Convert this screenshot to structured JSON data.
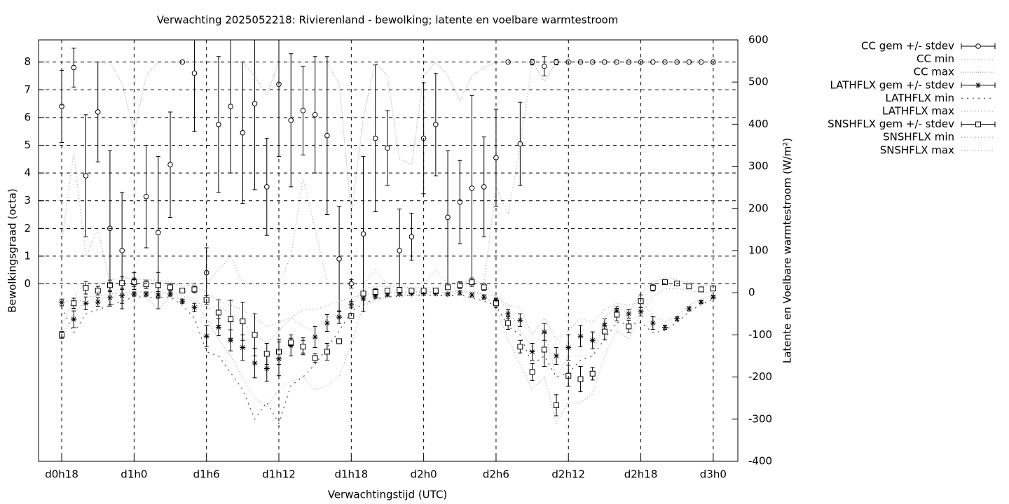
{
  "chart_data": {
    "type": "errorbar-line",
    "title": "Verwachting 2025052218: Rivierenland - bewolking; latente en voelbare warmtestroom",
    "x_label": "Verwachtingstijd (UTC)",
    "y_label": "Bewolkingsgraad (octa)",
    "y2_label": "Latente en Voelbare warmtestroom (W/m²)",
    "x": [
      18,
      19,
      20,
      21,
      22,
      23,
      24,
      25,
      26,
      27,
      28,
      29,
      30,
      31,
      32,
      33,
      34,
      35,
      36,
      37,
      38,
      39,
      40,
      41,
      42,
      43,
      44,
      45,
      46,
      47,
      48,
      49,
      50,
      51,
      52,
      53,
      54,
      55,
      56,
      57,
      58,
      59,
      60,
      61,
      62,
      63,
      64,
      65,
      66,
      67,
      68,
      69,
      70,
      71,
      72
    ],
    "xlim": [
      16.08,
      74.04
    ],
    "xticks": [
      {
        "value": 18,
        "label": "d0h18"
      },
      {
        "value": 24,
        "label": "d1h0"
      },
      {
        "value": 30,
        "label": "d1h6"
      },
      {
        "value": 36,
        "label": "d1h12"
      },
      {
        "value": 42,
        "label": "d1h18"
      },
      {
        "value": 48,
        "label": "d2h0"
      },
      {
        "value": 54,
        "label": "d2h6"
      },
      {
        "value": 60,
        "label": "d2h12"
      },
      {
        "value": 66,
        "label": "d2h18"
      },
      {
        "value": 72,
        "label": "d3h0"
      }
    ],
    "ylim": [
      -6.4,
      8.8
    ],
    "yticks": [
      0,
      1,
      2,
      3,
      4,
      5,
      6,
      7,
      8
    ],
    "y2lim": [
      -400,
      600
    ],
    "y2ticks": [
      -400,
      -300,
      -200,
      -100,
      0,
      100,
      200,
      300,
      400,
      500,
      600
    ],
    "grid": true,
    "series": [
      {
        "name": "CC gem +/- stdev",
        "color": "#000000",
        "marker": "circle",
        "axis": "y",
        "values": [
          6.4,
          7.8,
          3.9,
          6.2,
          2.0,
          1.2,
          0.1,
          3.15,
          1.85,
          4.3,
          8.0,
          7.6,
          0.4,
          5.75,
          6.4,
          5.45,
          6.5,
          3.5,
          7.2,
          5.9,
          6.25,
          6.1,
          5.35,
          0.9,
          0.0,
          1.8,
          5.25,
          4.9,
          1.2,
          1.7,
          5.25,
          5.75,
          2.4,
          2.95,
          3.45,
          3.5,
          4.55,
          8.0,
          5.05,
          8.0,
          7.85,
          8.0,
          8,
          8,
          8,
          8,
          8,
          8,
          8,
          8,
          8,
          8,
          8,
          8,
          8
        ],
        "errors": [
          1.3,
          0.7,
          2.2,
          1.8,
          2.8,
          2.1,
          0.3,
          1.85,
          2.75,
          1.9,
          0,
          2.1,
          0.9,
          2.45,
          2.4,
          2.55,
          3.1,
          1.75,
          2.6,
          2.4,
          1.6,
          2.1,
          2.85,
          1.9,
          0.15,
          2.8,
          2.65,
          1.35,
          1.5,
          0.85,
          2.0,
          1.85,
          2.4,
          1.5,
          3.35,
          1.8,
          1.75,
          0,
          1.5,
          0.1,
          0.35,
          0.1,
          0,
          0,
          0,
          0,
          0,
          0,
          0,
          0,
          0,
          0,
          0,
          0,
          0
        ]
      },
      {
        "name": "CC min",
        "color": "#aaaaaa",
        "dash": "1 3",
        "axis": "y",
        "values": [
          1.5,
          4.7,
          1,
          2,
          0,
          0,
          0,
          0,
          0,
          0,
          0,
          0,
          0,
          0.5,
          1,
          0,
          0,
          0,
          0,
          1,
          3.8,
          2,
          0,
          0,
          0,
          0,
          0.5,
          0,
          0,
          0,
          0,
          0.5,
          0,
          0,
          0,
          0,
          3.5,
          2.5,
          5,
          8,
          8,
          8,
          8,
          8,
          8,
          8,
          8,
          8,
          8,
          8,
          8,
          8,
          8,
          8,
          8
        ]
      },
      {
        "name": "CC max",
        "color": "#aaaaaa",
        "dash": "1 2",
        "axis": "y",
        "values": [
          8,
          8,
          8,
          8,
          8,
          7.2,
          5.5,
          7.5,
          8,
          8,
          8,
          8,
          8,
          8,
          8,
          8,
          7.5,
          6.8,
          8,
          8,
          8,
          8,
          8,
          7.2,
          2.5,
          6,
          8,
          7.5,
          4.5,
          4.3,
          7.5,
          8,
          7.5,
          6.6,
          7.5,
          7.8,
          8,
          8,
          8,
          8,
          7.3,
          8,
          8,
          8,
          8,
          8,
          8,
          8,
          8,
          8,
          8,
          8,
          8,
          8,
          8
        ]
      },
      {
        "name": "LATHFLX gem +/- stdev",
        "color": "#000000",
        "marker": "asterisk",
        "axis": "y2",
        "values": [
          -23,
          -63,
          -25,
          -22,
          -12,
          -7,
          -3,
          -3,
          -5,
          -3,
          -20,
          -35,
          -103,
          -82,
          -113,
          -130,
          -167,
          -180,
          -157,
          -125,
          -127,
          -105,
          -72,
          -58,
          -28,
          -13,
          -8,
          -5,
          -3,
          -2,
          -2,
          -2,
          -3,
          0,
          -5,
          -10,
          -18,
          -50,
          -65,
          -140,
          -93,
          -150,
          -130,
          -103,
          -113,
          -77,
          -43,
          -50,
          -45,
          -72,
          -82,
          -62,
          -38,
          -22,
          -10
        ],
        "errors": [
          8,
          20,
          15,
          10,
          15,
          18,
          5,
          5,
          8,
          5,
          5,
          10,
          25,
          20,
          25,
          30,
          35,
          30,
          40,
          25,
          20,
          25,
          20,
          15,
          8,
          5,
          5,
          3,
          3,
          3,
          3,
          3,
          3,
          5,
          5,
          5,
          5,
          10,
          15,
          20,
          20,
          20,
          30,
          25,
          20,
          15,
          10,
          10,
          10,
          15,
          5,
          5,
          5,
          3,
          3
        ]
      },
      {
        "name": "LATHFLX min",
        "color": "#555555",
        "dash": "2 6",
        "axis": "y2",
        "values": [
          -35,
          -95,
          -50,
          -40,
          -30,
          -20,
          -10,
          -10,
          -12,
          -10,
          -30,
          -60,
          -140,
          -150,
          -190,
          -230,
          -300,
          -260,
          -310,
          -220,
          -200,
          -170,
          -130,
          -90,
          -45,
          -25,
          -15,
          -10,
          -8,
          -6,
          -6,
          -6,
          -8,
          -5,
          -12,
          -20,
          -30,
          -80,
          -100,
          -170,
          -150,
          -200,
          -190,
          -160,
          -150,
          -110,
          -70,
          -75,
          -70,
          -95,
          -90,
          -70,
          -45,
          -28,
          -15
        ]
      },
      {
        "name": "LATHFLX max",
        "color": "#aaaaaa",
        "dash": "1 3",
        "axis": "y2",
        "values": [
          -10,
          -30,
          -10,
          -8,
          -3,
          0,
          2,
          2,
          0,
          2,
          -8,
          -15,
          -40,
          -30,
          -50,
          -70,
          -100,
          -120,
          -90,
          -60,
          -40,
          -40,
          -30,
          -20,
          -12,
          -5,
          -2,
          0,
          1,
          2,
          2,
          2,
          1,
          5,
          0,
          -3,
          -8,
          -30,
          -35,
          -100,
          -60,
          -110,
          -90,
          -60,
          -70,
          -40,
          -25,
          -30,
          -20,
          -55,
          -70,
          -55,
          -30,
          -15,
          -5
        ]
      },
      {
        "name": "SNSHFLX gem +/- stdev",
        "color": "#000000",
        "marker": "square",
        "axis": "y2",
        "values": [
          -100,
          -25,
          12,
          5,
          18,
          23,
          25,
          20,
          18,
          13,
          5,
          8,
          -17,
          -47,
          -63,
          -68,
          -100,
          -145,
          -140,
          -118,
          -128,
          -155,
          -140,
          -115,
          -55,
          -2,
          2,
          5,
          7,
          5,
          5,
          5,
          13,
          18,
          25,
          13,
          -25,
          -72,
          -128,
          -188,
          -135,
          -267,
          -197,
          -205,
          -192,
          -92,
          -52,
          -80,
          -20,
          12,
          25,
          22,
          15,
          8,
          10
        ],
        "errors": [
          8,
          12,
          15,
          10,
          12,
          15,
          10,
          10,
          30,
          8,
          5,
          8,
          10,
          30,
          45,
          45,
          50,
          25,
          30,
          10,
          15,
          10,
          20,
          5,
          5,
          5,
          8,
          5,
          5,
          3,
          3,
          3,
          5,
          8,
          10,
          8,
          10,
          15,
          15,
          20,
          40,
          25,
          25,
          30,
          15,
          20,
          15,
          15,
          15,
          8,
          3,
          3,
          3,
          3,
          3
        ]
      },
      {
        "name": "SNSHFLX min",
        "color": "#aaaaaa",
        "dash": "1 3",
        "axis": "y2",
        "values": [
          -110,
          -50,
          -20,
          -15,
          -10,
          -5,
          -5,
          -10,
          -40,
          -10,
          -15,
          -20,
          -60,
          -110,
          -150,
          -200,
          -250,
          -270,
          -230,
          -210,
          -200,
          -230,
          -220,
          -200,
          -120,
          -30,
          -20,
          -10,
          -5,
          -5,
          -5,
          -5,
          -5,
          0,
          5,
          -5,
          -40,
          -110,
          -170,
          -230,
          -200,
          -310,
          -260,
          -260,
          -240,
          -150,
          -90,
          -110,
          -50,
          -10,
          10,
          10,
          5,
          0,
          0
        ]
      },
      {
        "name": "SNSHFLX max",
        "color": "#aaaaaa",
        "dash": "1 3",
        "axis": "y2",
        "values": [
          -80,
          -10,
          25,
          20,
          30,
          35,
          35,
          30,
          30,
          25,
          15,
          20,
          0,
          -20,
          -30,
          -40,
          -60,
          -80,
          -70,
          -60,
          -80,
          -90,
          -60,
          -50,
          -30,
          10,
          15,
          15,
          15,
          12,
          12,
          12,
          20,
          25,
          30,
          20,
          -10,
          -40,
          -90,
          -130,
          -90,
          -200,
          -150,
          -150,
          -150,
          -60,
          -30,
          -50,
          0,
          25,
          35,
          30,
          25,
          18,
          18
        ]
      }
    ]
  }
}
